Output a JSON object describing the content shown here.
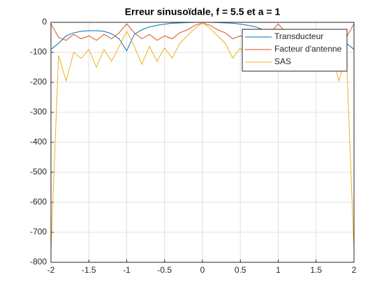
{
  "chart_data": {
    "type": "line",
    "title": "Erreur sinusoïdale, f = 5.5 et a = 1",
    "x": [
      -2,
      -1.9,
      -1.8,
      -1.7,
      -1.6,
      -1.5,
      -1.4,
      -1.3,
      -1.2,
      -1.1,
      -1,
      -0.9,
      -0.8,
      -0.7,
      -0.6,
      -0.5,
      -0.4,
      -0.3,
      -0.2,
      -0.1,
      0,
      0.1,
      0.2,
      0.3,
      0.4,
      0.5,
      0.6,
      0.7,
      0.8,
      0.9,
      1,
      1.1,
      1.2,
      1.3,
      1.4,
      1.5,
      1.6,
      1.7,
      1.8,
      1.9,
      2
    ],
    "series": [
      {
        "name": "Transducteur",
        "color": "#0072bd",
        "values": [
          -90,
          -70,
          -45,
          -35,
          -30,
          -28,
          -28,
          -30,
          -38,
          -55,
          -95,
          -40,
          -25,
          -15,
          -10,
          -6,
          -3,
          -2,
          -1,
          0,
          0,
          0,
          -1,
          -2,
          -3,
          -6,
          -10,
          -15,
          -25,
          -40,
          -95,
          -55,
          -38,
          -30,
          -28,
          -28,
          -30,
          -35,
          -45,
          -70,
          -90
        ]
      },
      {
        "name": "Facteur d'antenne",
        "color": "#d95319",
        "values": [
          -5,
          -50,
          -60,
          -40,
          -55,
          -45,
          -60,
          -40,
          -55,
          -35,
          -5,
          -35,
          -55,
          -40,
          -60,
          -45,
          -55,
          -35,
          -25,
          -10,
          -2,
          -10,
          -25,
          -35,
          -55,
          -45,
          -60,
          -40,
          -55,
          -35,
          -5,
          -35,
          -55,
          -40,
          -60,
          -45,
          -55,
          -40,
          -60,
          -50,
          -5
        ]
      },
      {
        "name": "SAS",
        "color": "#edb120",
        "values": [
          -760,
          -110,
          -195,
          -100,
          -120,
          -90,
          -150,
          -90,
          -130,
          -80,
          -30,
          -80,
          -140,
          -80,
          -130,
          -85,
          -120,
          -70,
          -45,
          -20,
          -2,
          -20,
          -45,
          -70,
          -120,
          -85,
          -130,
          -80,
          -140,
          -80,
          -30,
          -80,
          -130,
          -90,
          -150,
          -90,
          -120,
          -100,
          -195,
          -110,
          -760
        ]
      }
    ],
    "xlim": [
      -2,
      2
    ],
    "ylim": [
      -800,
      0
    ],
    "xticks": [
      -2,
      -1.5,
      -1,
      -0.5,
      0,
      0.5,
      1,
      1.5,
      2
    ],
    "yticks": [
      -800,
      -700,
      -600,
      -500,
      -400,
      -300,
      -200,
      -100,
      0
    ],
    "grid": true,
    "legend": "northeast"
  }
}
